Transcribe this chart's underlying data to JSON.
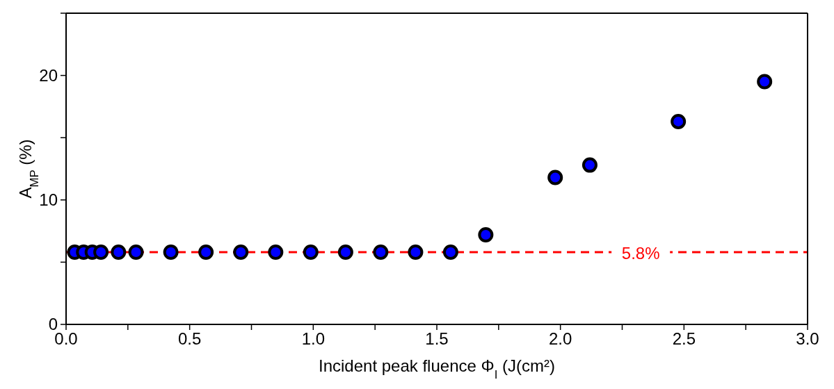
{
  "chart_data": {
    "type": "scatter",
    "xlabel": "Incident peak fluence Φ$_{I}$ (J(cm²)",
    "ylabel": "A$_{MP}$ (%)",
    "x": [
      0.035,
      0.071,
      0.106,
      0.141,
      0.212,
      0.283,
      0.424,
      0.566,
      0.707,
      0.848,
      0.99,
      1.131,
      1.273,
      1.414,
      1.556,
      1.698,
      1.979,
      2.119,
      2.477,
      2.826
    ],
    "series": [
      {
        "color": "#0000ff",
        "values": [
          5.8,
          5.8,
          5.8,
          5.8,
          5.8,
          5.8,
          5.8,
          5.8,
          5.8,
          5.8,
          5.8,
          5.8,
          5.8,
          5.8,
          5.8,
          7.2,
          11.8,
          12.8,
          16.3,
          19.5
        ]
      }
    ],
    "xlim": [
      0,
      3
    ],
    "xticks": [
      {
        "value": 0,
        "label": "0.0"
      },
      {
        "value": 0.25,
        "label": null
      },
      0.5,
      {
        "value": 0.75,
        "label": null
      },
      {
        "value": 1,
        "label": "1.0"
      },
      {
        "value": 1.25,
        "label": null
      },
      1.5,
      {
        "value": 1.75,
        "label": null
      },
      {
        "value": 2,
        "label": "2.0"
      },
      {
        "value": 2.25,
        "label": null
      },
      2.5,
      {
        "value": 2.75,
        "label": null
      },
      {
        "value": 3,
        "label": "3.0"
      }
    ],
    "ylim": [
      0,
      25
    ],
    "yticks": [
      0,
      {
        "value": 5,
        "label": null
      },
      10,
      {
        "value": 15,
        "label": null
      },
      20,
      {
        "value": 25,
        "label": null
      }
    ],
    "ref_lines": [
      {
        "axis": "y",
        "value": 5.8,
        "label": "5.8%",
        "color": "#ff0000",
        "line_style": "dashed"
      }
    ],
    "marker": "circle",
    "legend": false
  }
}
